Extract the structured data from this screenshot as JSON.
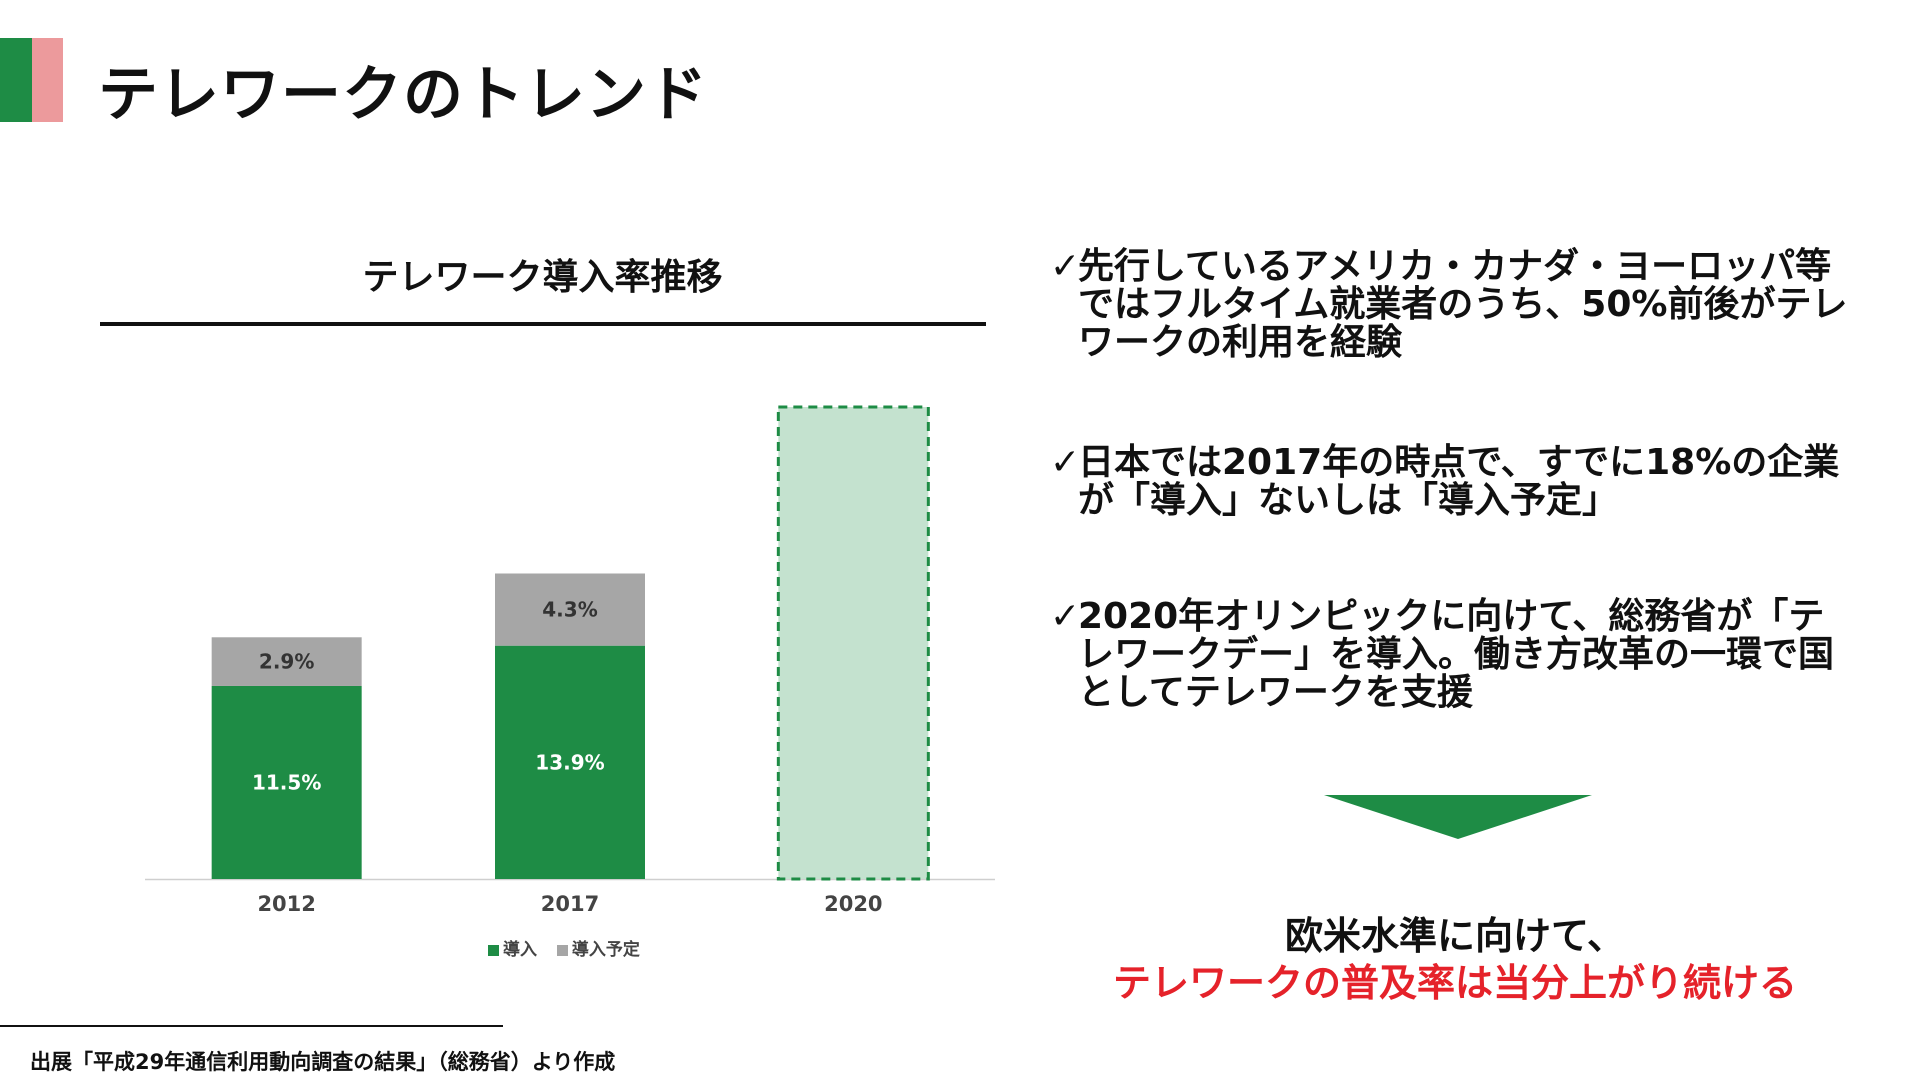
{
  "page": {
    "title": "テレワークのトレンド"
  },
  "colors": {
    "accent_green": "#1e8c45",
    "accent_pink": "#ec9a9c",
    "introduced": "#1e8c45",
    "planned": "#a6a6a6",
    "projection_fill": "#c4e2cf",
    "highlight_red": "#e5222a"
  },
  "chart_data": {
    "type": "bar",
    "stacked": true,
    "title": "テレワーク導入率推移",
    "categories": [
      "2012",
      "2017",
      "2020"
    ],
    "series": [
      {
        "name": "導入",
        "values": [
          11.5,
          13.9,
          null
        ],
        "labels": [
          "11.5%",
          "13.9%",
          ""
        ],
        "color": "#1e8c45"
      },
      {
        "name": "導入予定",
        "values": [
          2.9,
          4.3,
          null
        ],
        "labels": [
          "2.9%",
          "4.3%",
          ""
        ],
        "color": "#a6a6a6"
      }
    ],
    "projection": {
      "category": "2020",
      "style": "dashed-outline",
      "note": "unlabeled projected bar"
    },
    "ylim": [
      0,
      28
    ],
    "legend_position": "bottom",
    "grid": false
  },
  "legend": {
    "introduced": "導入",
    "planned": "導入予定"
  },
  "bullets": [
    {
      "check": "✓",
      "text": "先行しているアメリカ・カナダ・ヨーロッパ等ではフルタイム就業者のうち、50%前後がテレワークの利用を経験"
    },
    {
      "check": "✓",
      "text": "日本では2017年の時点で、すでに18%の企業が「導入」ないしは「導入予定」"
    },
    {
      "check": "✓",
      "text": "2020年オリンピックに向けて、総務省が「テレワークデー」を導入。働き方改革の一環で国としてテレワークを支援"
    }
  ],
  "conclusion": {
    "line1": "欧米水準に向けて、",
    "line2": "テレワークの普及率は当分上がり続ける"
  },
  "source": "出展「平成29年通信利用動向調査の結果」（総務省）より作成"
}
